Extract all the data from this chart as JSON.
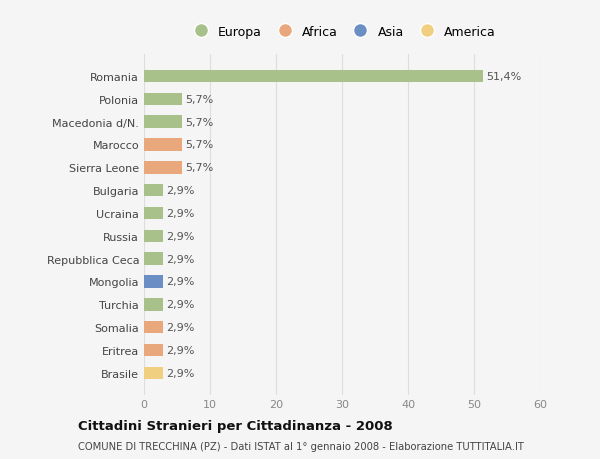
{
  "countries": [
    "Romania",
    "Polonia",
    "Macedonia d/N.",
    "Marocco",
    "Sierra Leone",
    "Bulgaria",
    "Ucraina",
    "Russia",
    "Repubblica Ceca",
    "Mongolia",
    "Turchia",
    "Somalia",
    "Eritrea",
    "Brasile"
  ],
  "values": [
    51.4,
    5.7,
    5.7,
    5.7,
    5.7,
    2.9,
    2.9,
    2.9,
    2.9,
    2.9,
    2.9,
    2.9,
    2.9,
    2.9
  ],
  "labels": [
    "51,4%",
    "5,7%",
    "5,7%",
    "5,7%",
    "5,7%",
    "2,9%",
    "2,9%",
    "2,9%",
    "2,9%",
    "2,9%",
    "2,9%",
    "2,9%",
    "2,9%",
    "2,9%"
  ],
  "colors": [
    "#a8c08a",
    "#a8c08a",
    "#a8c08a",
    "#e8a87c",
    "#e8a87c",
    "#a8c08a",
    "#a8c08a",
    "#a8c08a",
    "#a8c08a",
    "#6b8fc4",
    "#a8c08a",
    "#e8a87c",
    "#e8a87c",
    "#f0d080"
  ],
  "legend_labels": [
    "Europa",
    "Africa",
    "Asia",
    "America"
  ],
  "legend_colors": [
    "#a8c08a",
    "#e8a87c",
    "#6b8fc4",
    "#f0d080"
  ],
  "xlim": [
    0,
    60
  ],
  "xticks": [
    0,
    10,
    20,
    30,
    40,
    50,
    60
  ],
  "title": "Cittadini Stranieri per Cittadinanza - 2008",
  "subtitle": "COMUNE DI TRECCHINA (PZ) - Dati ISTAT al 1° gennaio 2008 - Elaborazione TUTTITALIA.IT",
  "bg_color": "#f5f5f5",
  "grid_color": "#dddddd",
  "bar_height": 0.55
}
